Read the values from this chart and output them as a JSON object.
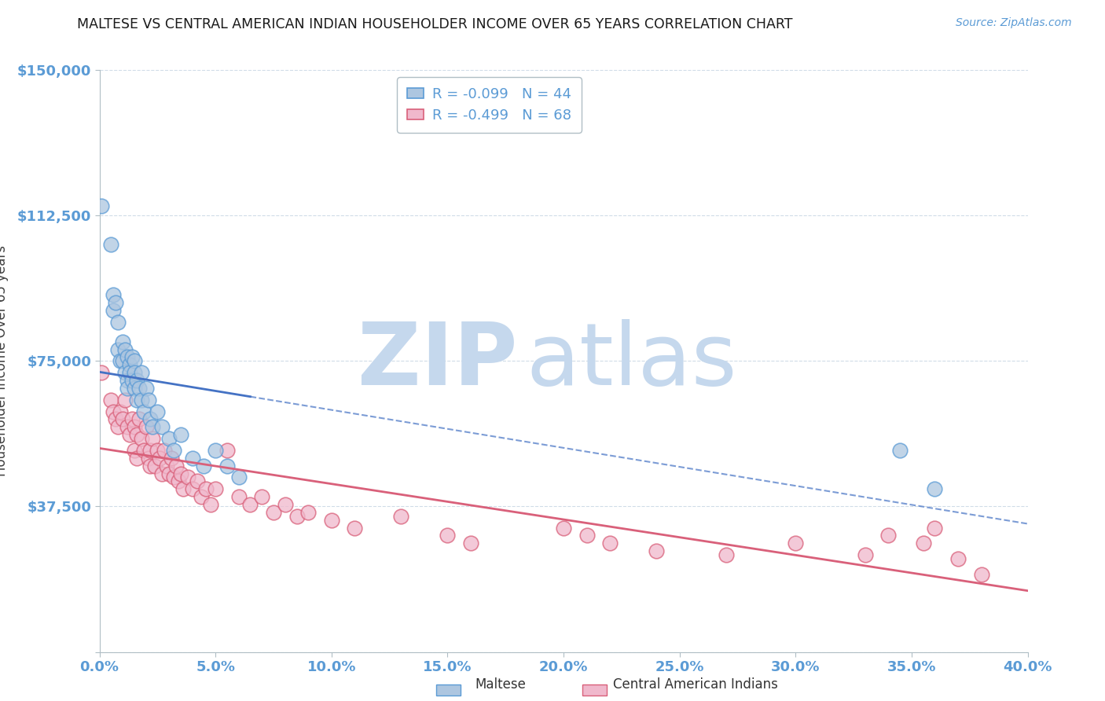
{
  "title": "MALTESE VS CENTRAL AMERICAN INDIAN HOUSEHOLDER INCOME OVER 65 YEARS CORRELATION CHART",
  "source": "Source: ZipAtlas.com",
  "ylabel": "Householder Income Over 65 years",
  "xlim": [
    0.0,
    0.4
  ],
  "ylim": [
    0,
    150000
  ],
  "yticks": [
    0,
    37500,
    75000,
    112500,
    150000
  ],
  "ytick_labels": [
    "",
    "$37,500",
    "$75,000",
    "$112,500",
    "$150,000"
  ],
  "xtick_labels": [
    "0.0%",
    "5.0%",
    "10.0%",
    "15.0%",
    "20.0%",
    "25.0%",
    "30.0%",
    "35.0%",
    "40.0%"
  ],
  "xticks": [
    0.0,
    0.05,
    0.1,
    0.15,
    0.2,
    0.25,
    0.3,
    0.35,
    0.4
  ],
  "maltese_color": "#adc6e0",
  "maltese_edge_color": "#5b9bd5",
  "central_color": "#f0b8cc",
  "central_edge_color": "#d9607a",
  "maltese_R": -0.099,
  "maltese_N": 44,
  "central_R": -0.499,
  "central_N": 68,
  "maltese_line_color": "#4472c4",
  "central_line_color": "#d9607a",
  "watermark_zip": "ZIP",
  "watermark_atlas": "atlas",
  "watermark_color": "#c5d8ed",
  "background_color": "#ffffff",
  "grid_color": "#d0dce8",
  "title_color": "#1a1a1a",
  "axis_label_color": "#404040",
  "tick_color": "#5b9bd5",
  "maltese_x": [
    0.001,
    0.005,
    0.006,
    0.006,
    0.007,
    0.008,
    0.008,
    0.009,
    0.01,
    0.01,
    0.011,
    0.011,
    0.012,
    0.012,
    0.012,
    0.013,
    0.013,
    0.014,
    0.014,
    0.015,
    0.015,
    0.015,
    0.016,
    0.016,
    0.017,
    0.018,
    0.018,
    0.019,
    0.02,
    0.021,
    0.022,
    0.023,
    0.025,
    0.027,
    0.03,
    0.032,
    0.035,
    0.04,
    0.045,
    0.05,
    0.055,
    0.06,
    0.345,
    0.36
  ],
  "maltese_y": [
    115000,
    105000,
    92000,
    88000,
    90000,
    85000,
    78000,
    75000,
    80000,
    75000,
    72000,
    78000,
    76000,
    70000,
    68000,
    74000,
    72000,
    76000,
    70000,
    75000,
    72000,
    68000,
    70000,
    65000,
    68000,
    72000,
    65000,
    62000,
    68000,
    65000,
    60000,
    58000,
    62000,
    58000,
    55000,
    52000,
    56000,
    50000,
    48000,
    52000,
    48000,
    45000,
    52000,
    42000
  ],
  "central_x": [
    0.001,
    0.005,
    0.006,
    0.007,
    0.008,
    0.009,
    0.01,
    0.011,
    0.012,
    0.013,
    0.014,
    0.015,
    0.015,
    0.016,
    0.016,
    0.017,
    0.018,
    0.019,
    0.02,
    0.021,
    0.022,
    0.022,
    0.023,
    0.024,
    0.025,
    0.026,
    0.027,
    0.028,
    0.029,
    0.03,
    0.031,
    0.032,
    0.033,
    0.034,
    0.035,
    0.036,
    0.038,
    0.04,
    0.042,
    0.044,
    0.046,
    0.048,
    0.05,
    0.055,
    0.06,
    0.065,
    0.07,
    0.075,
    0.08,
    0.085,
    0.09,
    0.1,
    0.11,
    0.13,
    0.15,
    0.16,
    0.2,
    0.21,
    0.22,
    0.24,
    0.27,
    0.3,
    0.33,
    0.34,
    0.355,
    0.36,
    0.37,
    0.38
  ],
  "central_y": [
    72000,
    65000,
    62000,
    60000,
    58000,
    62000,
    60000,
    65000,
    58000,
    56000,
    60000,
    58000,
    52000,
    56000,
    50000,
    60000,
    55000,
    52000,
    58000,
    50000,
    48000,
    52000,
    55000,
    48000,
    52000,
    50000,
    46000,
    52000,
    48000,
    46000,
    50000,
    45000,
    48000,
    44000,
    46000,
    42000,
    45000,
    42000,
    44000,
    40000,
    42000,
    38000,
    42000,
    52000,
    40000,
    38000,
    40000,
    36000,
    38000,
    35000,
    36000,
    34000,
    32000,
    35000,
    30000,
    28000,
    32000,
    30000,
    28000,
    26000,
    25000,
    28000,
    25000,
    30000,
    28000,
    32000,
    24000,
    20000
  ]
}
